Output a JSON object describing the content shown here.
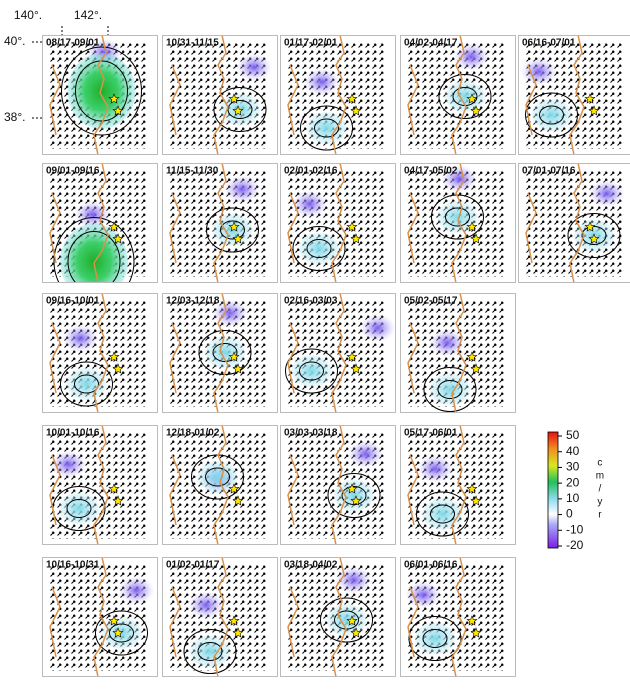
{
  "axes": {
    "lon_labels": [
      "140°.",
      "142°."
    ],
    "lat_labels": [
      "40°.",
      "38°."
    ]
  },
  "panels": [
    [
      "08/17-09/01",
      "10/31-11/15",
      "01/17-02/01",
      "04/02-04/17",
      "06/16-07/01"
    ],
    [
      "09/01-09/16",
      "11/15-11/30",
      "02/01-02/16",
      "04/17-05/02",
      "07/01-07/16"
    ],
    [
      "09/16-10/01",
      "12/03-12/18",
      "02/16-03/03",
      "05/02-05/17"
    ],
    [
      "10/01-10/16",
      "12/18-01/02",
      "03/03-03/18",
      "05/17-06/01"
    ],
    [
      "10/16-10/31",
      "01/02-01/17",
      "03/18-04/02",
      "06/01-06/16"
    ]
  ],
  "colorbar": {
    "lim": [
      -20,
      50
    ],
    "ticks": [
      50,
      40,
      30,
      20,
      10,
      0,
      -10,
      -20
    ],
    "unit": "cm/yr"
  }
}
